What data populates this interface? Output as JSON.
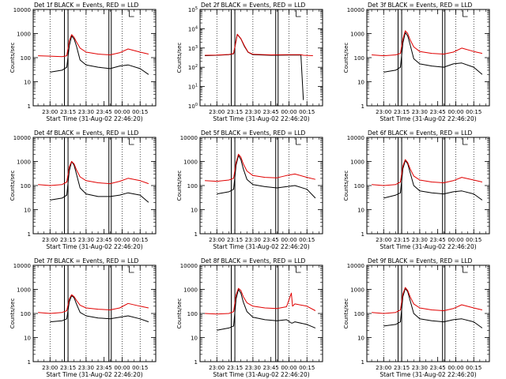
{
  "figure": {
    "x_title": "Start Time (31-Aug-02 22:46:20)",
    "y_title": "Counts/sec",
    "series_colors": {
      "events": "#000000",
      "lld": "#e00000"
    }
  },
  "chart_data": [
    {
      "type": "line",
      "title": "Det 1f BLACK = Events, RED = LLD",
      "ylabel": "Counts/sec",
      "xlabel": "Start Time (31-Aug-02 22:46:20)",
      "x_ticks": [
        "23:00",
        "23:15",
        "23:30",
        "23:45",
        "00:00",
        "00:15"
      ],
      "y_ticks": [
        "1",
        "10",
        "100",
        "1000",
        "10000"
      ],
      "yscale": "log",
      "ylim": [
        1,
        10000
      ],
      "x": [
        "22:50",
        "23:00",
        "23:10",
        "23:14",
        "23:16",
        "23:18",
        "23:20",
        "23:22",
        "23:25",
        "23:30",
        "23:40",
        "23:50",
        "23:58",
        "00:05",
        "00:15",
        "00:22"
      ],
      "series": [
        {
          "values": [
            null,
            25,
            30,
            40,
            300,
            800,
            600,
            300,
            80,
            50,
            40,
            35,
            45,
            50,
            35,
            20
          ]
        },
        {
          "values": [
            120,
            115,
            110,
            120,
            500,
            900,
            700,
            450,
            250,
            170,
            140,
            130,
            160,
            230,
            170,
            140
          ]
        }
      ]
    },
    {
      "type": "line",
      "title": "Det 2f BLACK = Events, RED = LLD",
      "ylabel": "Counts/sec",
      "xlabel": "Start Time (31-Aug-02 22:46:20)",
      "x_ticks": [
        "23:00",
        "23:15",
        "23:30",
        "23:45",
        "00:00",
        "00:15"
      ],
      "y_ticks": [
        "10^0",
        "10^1",
        "10^2",
        "10^3",
        "10^4",
        "10^5"
      ],
      "yscale": "log",
      "ylim": [
        1,
        100000
      ],
      "x": [
        "22:50",
        "23:00",
        "23:10",
        "23:14",
        "23:17",
        "23:20",
        "23:23",
        "23:26",
        "23:30",
        "23:45",
        "00:00",
        "00:10",
        "00:12",
        "00:20"
      ],
      "series": [
        {
          "values": [
            400,
            420,
            450,
            500,
            5000,
            3000,
            1200,
            600,
            450,
            420,
            430,
            430,
            2,
            null
          ]
        },
        {
          "values": [
            420,
            430,
            460,
            520,
            5200,
            3100,
            1300,
            620,
            470,
            440,
            450,
            450,
            420,
            400
          ]
        }
      ]
    },
    {
      "type": "line",
      "title": "Det 3f BLACK = Events, RED = LLD",
      "ylabel": "Counts/sec",
      "xlabel": "Start Time (31-Aug-02 22:46:20)",
      "x_ticks": [
        "23:00",
        "23:15",
        "23:30",
        "23:45",
        "00:00",
        "00:15"
      ],
      "y_ticks": [
        "1",
        "10",
        "100",
        "1000",
        "10000"
      ],
      "yscale": "log",
      "ylim": [
        1,
        10000
      ],
      "x": [
        "22:50",
        "23:00",
        "23:10",
        "23:14",
        "23:16",
        "23:18",
        "23:20",
        "23:22",
        "23:25",
        "23:30",
        "23:40",
        "23:50",
        "23:58",
        "00:05",
        "00:15",
        "00:22"
      ],
      "series": [
        {
          "values": [
            null,
            25,
            30,
            40,
            400,
            1100,
            800,
            350,
            90,
            55,
            45,
            40,
            55,
            60,
            40,
            20
          ]
        },
        {
          "values": [
            130,
            120,
            130,
            150,
            600,
            1300,
            1000,
            550,
            280,
            180,
            150,
            140,
            170,
            250,
            180,
            150
          ]
        }
      ]
    },
    {
      "type": "line",
      "title": "Det 4f BLACK = Events, RED = LLD",
      "ylabel": "Counts/sec",
      "xlabel": "Start Time (31-Aug-02 22:46:20)",
      "x_ticks": [
        "23:00",
        "23:15",
        "23:30",
        "23:45",
        "00:00",
        "00:15"
      ],
      "y_ticks": [
        "1",
        "10",
        "100",
        "1000",
        "10000"
      ],
      "yscale": "log",
      "ylim": [
        1,
        10000
      ],
      "x": [
        "22:50",
        "23:00",
        "23:10",
        "23:14",
        "23:16",
        "23:18",
        "23:20",
        "23:22",
        "23:25",
        "23:30",
        "23:40",
        "23:50",
        "23:58",
        "00:05",
        "00:15",
        "00:22"
      ],
      "series": [
        {
          "values": [
            null,
            25,
            30,
            40,
            400,
            1000,
            700,
            300,
            80,
            45,
            35,
            35,
            40,
            50,
            40,
            20
          ]
        },
        {
          "values": [
            110,
            100,
            110,
            140,
            600,
            1000,
            800,
            450,
            230,
            160,
            130,
            120,
            150,
            200,
            160,
            120
          ]
        }
      ]
    },
    {
      "type": "line",
      "title": "Det 5f BLACK = Events, RED = LLD",
      "ylabel": "Counts/sec",
      "xlabel": "Start Time (31-Aug-02 22:46:20)",
      "x_ticks": [
        "23:00",
        "23:15",
        "23:30",
        "23:45",
        "00:00",
        "00:15"
      ],
      "y_ticks": [
        "1",
        "10",
        "100",
        "1000",
        "10000"
      ],
      "yscale": "log",
      "ylim": [
        1,
        10000
      ],
      "x": [
        "22:50",
        "23:00",
        "23:10",
        "23:14",
        "23:16",
        "23:18",
        "23:20",
        "23:22",
        "23:25",
        "23:30",
        "23:40",
        "23:50",
        "23:58",
        "00:05",
        "00:15",
        "00:22"
      ],
      "series": [
        {
          "values": [
            null,
            45,
            55,
            70,
            700,
            1800,
            1200,
            500,
            180,
            110,
            90,
            80,
            90,
            100,
            70,
            30
          ]
        },
        {
          "values": [
            160,
            150,
            170,
            200,
            900,
            2000,
            1500,
            800,
            400,
            260,
            220,
            210,
            260,
            300,
            220,
            180
          ]
        }
      ]
    },
    {
      "type": "line",
      "title": "Det 6f BLACK = Events, RED = LLD",
      "ylabel": "Counts/sec",
      "xlabel": "Start Time (31-Aug-02 22:46:20)",
      "x_ticks": [
        "23:00",
        "23:15",
        "23:30",
        "23:45",
        "00:00",
        "00:15"
      ],
      "y_ticks": [
        "1",
        "10",
        "100",
        "1000",
        "10000"
      ],
      "yscale": "log",
      "ylim": [
        1,
        10000
      ],
      "x": [
        "22:50",
        "23:00",
        "23:10",
        "23:14",
        "23:16",
        "23:18",
        "23:20",
        "23:22",
        "23:25",
        "23:30",
        "23:40",
        "23:50",
        "23:58",
        "00:05",
        "00:15",
        "00:22"
      ],
      "series": [
        {
          "values": [
            null,
            30,
            40,
            50,
            500,
            1100,
            800,
            350,
            100,
            60,
            50,
            45,
            55,
            60,
            45,
            25
          ]
        },
        {
          "values": [
            110,
            100,
            110,
            140,
            650,
            1200,
            900,
            500,
            250,
            170,
            140,
            130,
            160,
            220,
            170,
            140
          ]
        }
      ]
    },
    {
      "type": "line",
      "title": "Det 7f BLACK = Events, RED = LLD",
      "ylabel": "Counts/sec",
      "xlabel": "Start Time (31-Aug-02 22:46:20)",
      "x_ticks": [
        "23:00",
        "23:15",
        "23:30",
        "23:45",
        "00:00",
        "00:15"
      ],
      "y_ticks": [
        "1",
        "10",
        "100",
        "1000",
        "10000"
      ],
      "yscale": "log",
      "ylim": [
        1,
        10000
      ],
      "x": [
        "22:50",
        "23:00",
        "23:10",
        "23:14",
        "23:16",
        "23:18",
        "23:20",
        "23:22",
        "23:25",
        "23:30",
        "23:40",
        "23:50",
        "23:58",
        "00:05",
        "00:15",
        "00:22"
      ],
      "series": [
        {
          "values": [
            null,
            45,
            50,
            60,
            300,
            550,
            450,
            250,
            110,
            80,
            65,
            60,
            70,
            80,
            60,
            45
          ]
        },
        {
          "values": [
            110,
            100,
            110,
            130,
            400,
            600,
            500,
            350,
            220,
            170,
            150,
            140,
            170,
            260,
            200,
            170
          ]
        }
      ]
    },
    {
      "type": "line",
      "title": "Det 8f BLACK = Events, RED = LLD",
      "ylabel": "Counts/sec",
      "xlabel": "Start Time (31-Aug-02 22:46:20)",
      "x_ticks": [
        "23:00",
        "23:15",
        "23:30",
        "23:45",
        "00:00",
        "00:15"
      ],
      "y_ticks": [
        "1",
        "10",
        "100",
        "1000",
        "10000"
      ],
      "yscale": "log",
      "ylim": [
        1,
        10000
      ],
      "x": [
        "22:50",
        "23:00",
        "23:10",
        "23:14",
        "23:16",
        "23:18",
        "23:20",
        "23:22",
        "23:25",
        "23:30",
        "23:40",
        "23:50",
        "23:58",
        "00:02",
        "00:03",
        "00:05",
        "00:15",
        "00:22"
      ],
      "series": [
        {
          "values": [
            null,
            20,
            25,
            30,
            400,
            1000,
            700,
            300,
            120,
            70,
            55,
            50,
            55,
            40,
            40,
            45,
            35,
            25
          ]
        },
        {
          "values": [
            100,
            95,
            100,
            120,
            600,
            1100,
            900,
            500,
            280,
            200,
            170,
            160,
            190,
            700,
            200,
            250,
            200,
            130
          ]
        }
      ]
    },
    {
      "type": "line",
      "title": "Det 9f BLACK = Events, RED = LLD",
      "ylabel": "Counts/sec",
      "xlabel": "Start Time (31-Aug-02 22:46:20)",
      "x_ticks": [
        "23:00",
        "23:15",
        "23:30",
        "23:45",
        "00:00",
        "00:15"
      ],
      "y_ticks": [
        "1",
        "10",
        "100",
        "1000",
        "10000"
      ],
      "yscale": "log",
      "ylim": [
        1,
        10000
      ],
      "x": [
        "22:50",
        "23:00",
        "23:10",
        "23:14",
        "23:16",
        "23:18",
        "23:20",
        "23:22",
        "23:25",
        "23:30",
        "23:40",
        "23:50",
        "23:58",
        "00:05",
        "00:15",
        "00:22"
      ],
      "series": [
        {
          "values": [
            null,
            30,
            35,
            45,
            500,
            1100,
            800,
            350,
            100,
            60,
            50,
            45,
            55,
            60,
            45,
            25
          ]
        },
        {
          "values": [
            110,
            100,
            110,
            140,
            650,
            1200,
            900,
            500,
            250,
            170,
            140,
            130,
            160,
            230,
            170,
            140
          ]
        }
      ]
    }
  ]
}
